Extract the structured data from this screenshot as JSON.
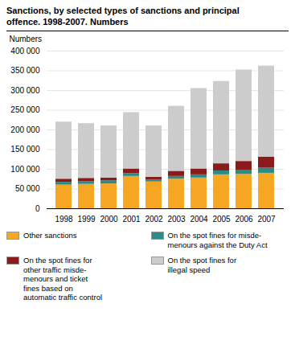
{
  "chart_data": {
    "type": "bar",
    "stacked": true,
    "title": "Sanctions, by selected types of sanctions and principal\noffence. 1998-2007. Numbers",
    "ylabel": "Numbers",
    "categories": [
      "1998",
      "1999",
      "2000",
      "2001",
      "2002",
      "2003",
      "2004",
      "2005",
      "2006",
      "2007"
    ],
    "series": [
      {
        "name": "Other sanctions",
        "color": "#f5a623",
        "values": [
          60000,
          62000,
          63000,
          82000,
          68000,
          75000,
          78000,
          86000,
          87000,
          90000
        ]
      },
      {
        "name": "On the spot fines for misde-\nmenours against the Duty Act",
        "color": "#2a8b87",
        "values": [
          7000,
          7000,
          8000,
          7000,
          5000,
          7000,
          8000,
          10000,
          11000,
          13000
        ]
      },
      {
        "name": "On the spot fines for\nother traffic misde-\nmenours and ticket\nfines based on\nautomatic traffic control",
        "color": "#8b1a1a",
        "values": [
          8000,
          8000,
          7000,
          12000,
          7000,
          13000,
          15000,
          18000,
          22000,
          28000
        ]
      },
      {
        "name": "On the spot fines for\nillegal speed",
        "color": "#cccccc",
        "values": [
          145000,
          139000,
          132000,
          143000,
          130000,
          165000,
          204000,
          209000,
          232000,
          231000
        ]
      }
    ],
    "ylim": [
      0,
      400000
    ],
    "yticks": [
      0,
      {
        "value": 50000,
        "label": "50 000"
      },
      {
        "value": 100000,
        "label": "100 000"
      },
      {
        "value": 150000,
        "label": "150 000"
      },
      {
        "value": 200000,
        "label": "200 000"
      },
      {
        "value": 250000,
        "label": "250 000"
      },
      {
        "value": 300000,
        "label": "300 000"
      },
      {
        "value": 350000,
        "label": "350 000"
      },
      {
        "value": 400000,
        "label": "400 000"
      }
    ],
    "grid": true
  }
}
